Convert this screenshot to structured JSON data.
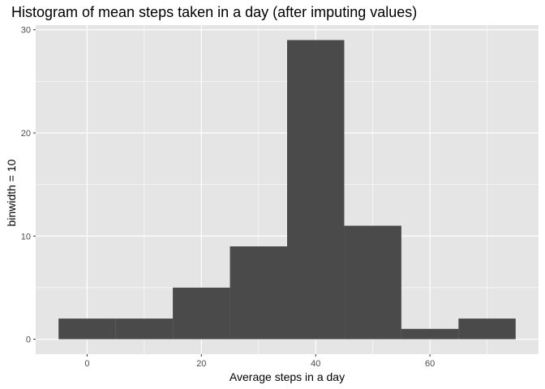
{
  "chart_data": {
    "type": "bar",
    "title": "Histogram of mean steps taken in a day (after imputing values)",
    "xlabel": "Average steps in a day",
    "ylabel": "binwidth = 10",
    "bins": [
      {
        "x0": -5,
        "x1": 5,
        "count": 2
      },
      {
        "x0": 5,
        "x1": 15,
        "count": 2
      },
      {
        "x0": 15,
        "x1": 25,
        "count": 5
      },
      {
        "x0": 25,
        "x1": 35,
        "count": 9
      },
      {
        "x0": 35,
        "x1": 45,
        "count": 29
      },
      {
        "x0": 45,
        "x1": 55,
        "count": 11
      },
      {
        "x0": 55,
        "x1": 65,
        "count": 1
      },
      {
        "x0": 65,
        "x1": 75,
        "count": 2
      }
    ],
    "xlim": [
      -9,
      79
    ],
    "ylim": [
      -1.45,
      30.45
    ],
    "xticks": [
      0,
      20,
      40,
      60
    ],
    "xminor": [
      -10,
      10,
      30,
      50,
      70
    ],
    "yticks": [
      0,
      10,
      20,
      30
    ],
    "yminor": [
      5,
      15,
      25
    ],
    "grid": true,
    "colors": {
      "panel": "#e5e5e5",
      "grid": "#ffffff",
      "bar": "#4a4a4a",
      "text": "#4d4d4d"
    }
  }
}
